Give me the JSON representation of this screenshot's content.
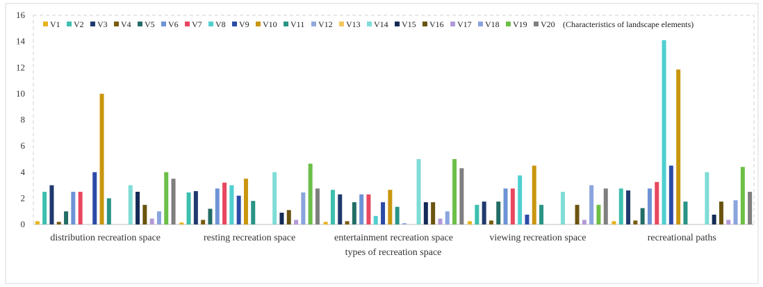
{
  "chart_data": {
    "type": "bar",
    "title": "",
    "xlabel": "types of recreation space",
    "ylabel": "",
    "ylim": [
      0,
      16
    ],
    "yticks": [
      0,
      2,
      4,
      6,
      8,
      10,
      12,
      14,
      16
    ],
    "grid": false,
    "legend_position": "top",
    "legend_note": "(Characteristics of landscape elements)",
    "categories": [
      "distribution recreation space",
      "resting recreation space",
      "entertainment recreation space",
      "viewing recreation space",
      "recreational paths"
    ],
    "series": [
      {
        "name": "V1",
        "color": "#e8b320",
        "values": [
          0.25,
          0.15,
          0.2,
          0.25,
          0.25
        ]
      },
      {
        "name": "V2",
        "color": "#3dbfae",
        "values": [
          2.5,
          2.45,
          2.65,
          1.5,
          2.75
        ]
      },
      {
        "name": "V3",
        "color": "#1f3a6e",
        "values": [
          3.0,
          2.55,
          2.3,
          1.75,
          2.6
        ]
      },
      {
        "name": "V4",
        "color": "#7a5c0e",
        "values": [
          0.2,
          0.35,
          0.25,
          0.3,
          0.3
        ]
      },
      {
        "name": "V5",
        "color": "#246d66",
        "values": [
          1.0,
          1.2,
          1.7,
          1.75,
          1.25
        ]
      },
      {
        "name": "V6",
        "color": "#6e93d6",
        "values": [
          2.5,
          2.75,
          2.3,
          2.75,
          2.75
        ]
      },
      {
        "name": "V7",
        "color": "#e8485f",
        "values": [
          2.5,
          3.2,
          2.3,
          2.75,
          3.25
        ]
      },
      {
        "name": "V8",
        "color": "#4fcfcf",
        "values": [
          0.0,
          3.0,
          0.65,
          3.75,
          14.1
        ]
      },
      {
        "name": "V9",
        "color": "#2b4ba6",
        "values": [
          4.0,
          2.2,
          1.7,
          0.75,
          4.5
        ]
      },
      {
        "name": "V10",
        "color": "#c9960f",
        "values": [
          10.0,
          3.5,
          2.65,
          4.5,
          11.85
        ]
      },
      {
        "name": "V11",
        "color": "#2a9486",
        "values": [
          2.0,
          1.8,
          1.35,
          1.5,
          1.75
        ]
      },
      {
        "name": "V12",
        "color": "#93a9e0",
        "values": [
          0.0,
          0.0,
          0.1,
          0.0,
          0.0
        ]
      },
      {
        "name": "V13",
        "color": "#f2c75c",
        "values": [
          0.0,
          0.0,
          0.0,
          0.0,
          0.0
        ]
      },
      {
        "name": "V14",
        "color": "#7fdcd6",
        "values": [
          3.0,
          4.0,
          5.0,
          2.5,
          4.0
        ]
      },
      {
        "name": "V15",
        "color": "#142b57",
        "values": [
          2.5,
          0.9,
          1.7,
          0.0,
          0.75
        ]
      },
      {
        "name": "V16",
        "color": "#6b5410",
        "values": [
          1.5,
          1.1,
          1.7,
          1.5,
          1.75
        ]
      },
      {
        "name": "V17",
        "color": "#b39ad9",
        "values": [
          0.45,
          0.35,
          0.45,
          0.35,
          0.35
        ]
      },
      {
        "name": "V18",
        "color": "#8aa4dd",
        "values": [
          1.0,
          2.45,
          1.0,
          3.0,
          1.85
        ]
      },
      {
        "name": "V19",
        "color": "#6cbf47",
        "values": [
          4.0,
          4.65,
          5.0,
          1.5,
          4.4
        ]
      },
      {
        "name": "V20",
        "color": "#7f7f7f",
        "values": [
          3.5,
          2.75,
          4.3,
          2.75,
          2.5
        ]
      }
    ]
  }
}
